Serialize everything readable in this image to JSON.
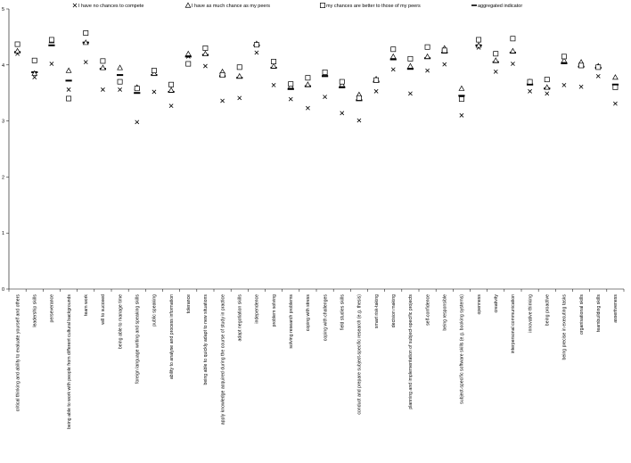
{
  "chart_data": {
    "type": "scatter",
    "title": "",
    "xlabel": "",
    "ylabel": "",
    "ylim": [
      0,
      5
    ],
    "yticks": [
      0,
      1,
      2,
      3,
      4,
      5
    ],
    "grid": false,
    "legend_position": "top",
    "categories": [
      "critical thinking and ability to evaluate yourself and others",
      "leadership skills",
      "perseverance",
      "being able to work with people from different cultural backgrounds",
      "team work",
      "will to succeed",
      "being able to manage time",
      "foreign language writing and speaking skills",
      "public speaking",
      "ability to analyse and process information",
      "tolerance",
      "being able to quickly adapt to new situations",
      "apply knowledge acquired during the course of study in practice",
      "adapt negotiation skills",
      "independence",
      "problem solving",
      "solving research problems",
      "coping with stress",
      "coping with challenges",
      "field studies skills",
      "conduct and prepare subject-specific research (e.g. thesis)",
      "smart risk-taking",
      "decision making",
      "planning and implementation of subject-specific projects",
      "self-confidence",
      "being responsible",
      "subject-specific software skills (e.g. booking systems)",
      "openness",
      "creativity",
      "interpersonal communication",
      "innovative thinking",
      "being proactive",
      "being precise in executing tasks",
      "organisational skills",
      "teambuilding skills",
      "assertiveness"
    ],
    "series": [
      {
        "name": "I have no chances to compete",
        "marker": "x",
        "values": [
          4.2,
          3.78,
          4.02,
          3.56,
          4.05,
          3.56,
          3.56,
          2.98,
          3.52,
          3.27,
          4.15,
          3.98,
          3.36,
          3.41,
          4.22,
          3.64,
          3.39,
          3.23,
          3.43,
          3.14,
          3.01,
          3.53,
          3.92,
          3.49,
          3.9,
          4.01,
          3.1,
          4.31,
          3.88,
          4.02,
          3.53,
          3.49,
          3.64,
          3.61,
          3.8,
          3.31
        ]
      },
      {
        "name": "I have as much chance as my peers",
        "marker": "triangle",
        "values": [
          4.25,
          3.85,
          4.43,
          3.9,
          4.4,
          3.95,
          3.95,
          3.6,
          3.85,
          3.55,
          4.2,
          4.2,
          3.88,
          3.8,
          4.38,
          3.98,
          3.62,
          3.65,
          3.85,
          3.65,
          3.47,
          3.75,
          4.15,
          3.98,
          4.15,
          4.3,
          3.58,
          4.35,
          4.08,
          4.25,
          3.7,
          3.6,
          4.08,
          4.05,
          3.98,
          3.78
        ]
      },
      {
        "name": "my chances are better to those of my peers",
        "marker": "square",
        "values": [
          4.37,
          4.08,
          4.45,
          3.4,
          4.57,
          4.07,
          3.7,
          3.58,
          3.9,
          3.65,
          4.02,
          4.3,
          3.82,
          3.96,
          4.36,
          4.06,
          3.66,
          3.77,
          3.87,
          3.7,
          3.41,
          3.73,
          4.28,
          4.11,
          4.32,
          4.26,
          3.39,
          4.45,
          4.2,
          4.47,
          3.7,
          3.74,
          4.15,
          3.99,
          3.96,
          3.6
        ]
      },
      {
        "name": "aggregated indicator",
        "marker": "dash",
        "values": [
          4.23,
          3.87,
          4.35,
          3.72,
          4.4,
          3.93,
          3.82,
          3.5,
          3.82,
          3.52,
          4.15,
          4.18,
          3.8,
          3.77,
          4.35,
          3.95,
          3.57,
          3.62,
          3.8,
          3.6,
          3.37,
          3.7,
          4.1,
          3.93,
          4.12,
          4.22,
          3.45,
          4.35,
          4.05,
          4.22,
          3.65,
          3.58,
          4.03,
          3.97,
          3.95,
          3.65
        ]
      }
    ]
  }
}
